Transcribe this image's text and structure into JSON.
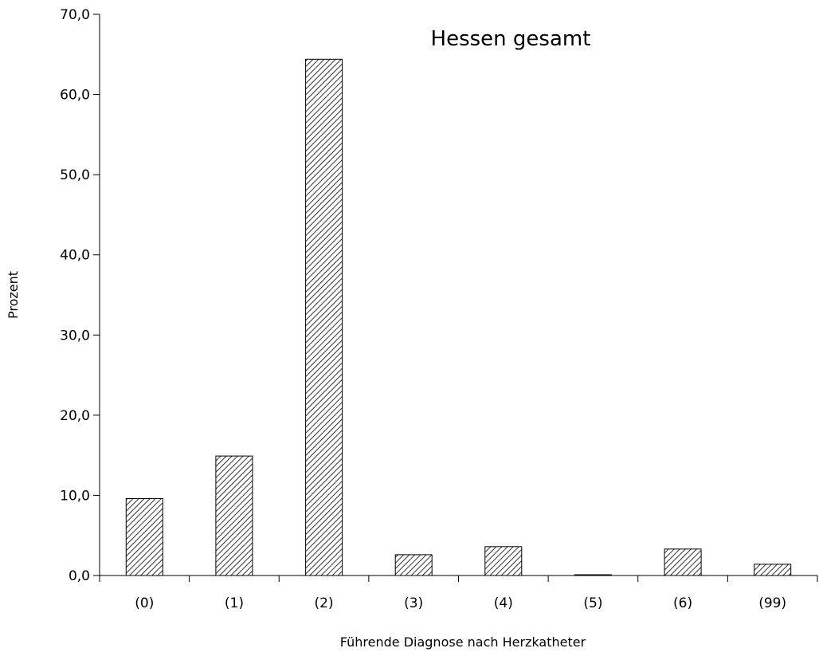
{
  "chart_data": {
    "type": "bar",
    "title": "Hessen gesamt",
    "xlabel": "Führende Diagnose nach Herzkatheter",
    "ylabel": "Prozent",
    "categories": [
      "(0)",
      "(1)",
      "(2)",
      "(3)",
      "(4)",
      "(5)",
      "(6)",
      "(99)"
    ],
    "values": [
      9.6,
      14.9,
      64.4,
      2.6,
      3.6,
      0.1,
      3.3,
      1.4
    ],
    "ylim": [
      0,
      70
    ],
    "yticks": [
      "0,0",
      "10,0",
      "20,0",
      "30,0",
      "40,0",
      "50,0",
      "60,0",
      "70,0"
    ],
    "grid": false,
    "legend": "none",
    "bar_fill": "diagonal-hatch",
    "bar_color": "#000000"
  }
}
